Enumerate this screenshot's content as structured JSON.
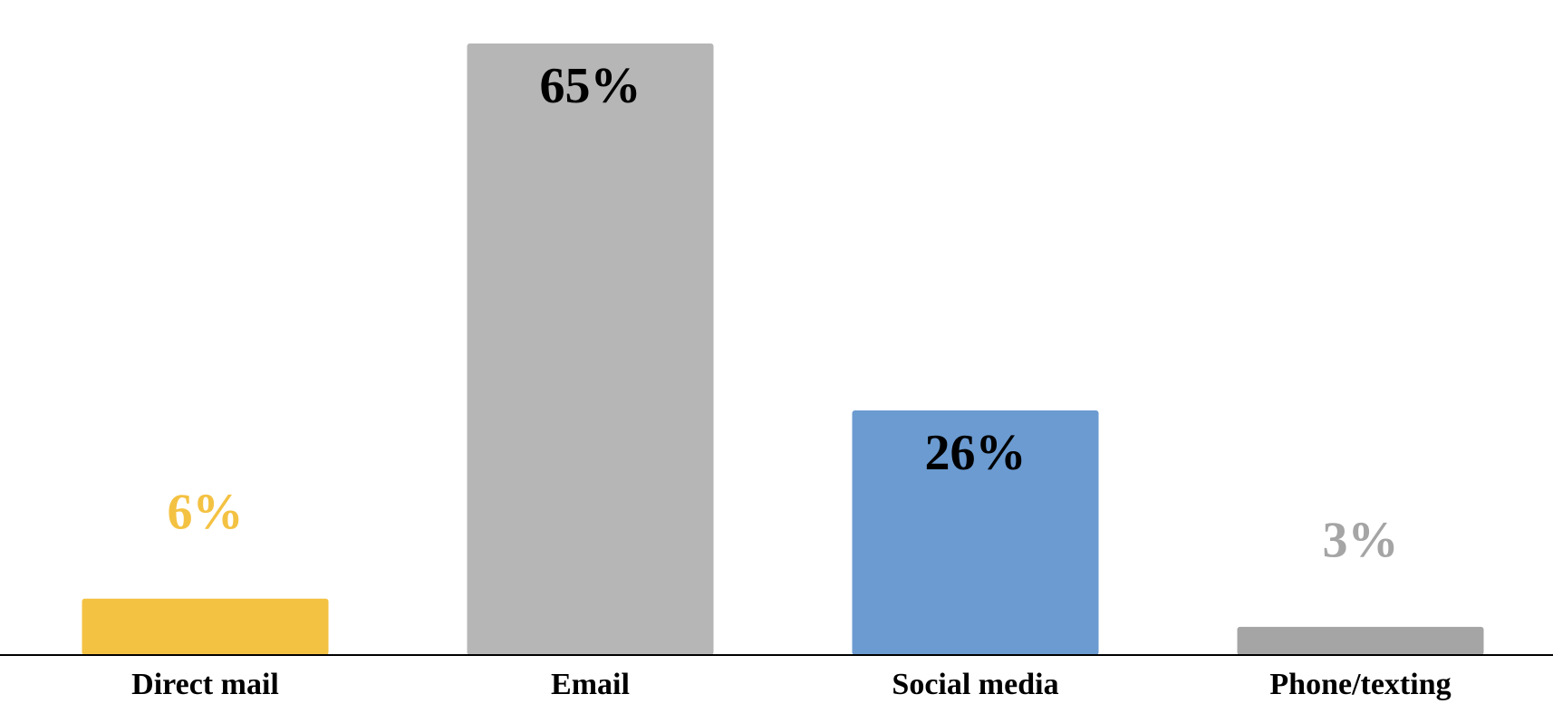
{
  "chart_data": {
    "type": "bar",
    "categories": [
      "Direct mail",
      "Email",
      "Social media",
      "Phone/texting"
    ],
    "values": [
      6,
      65,
      26,
      3
    ],
    "value_labels": [
      "6%",
      "65%",
      "26%",
      "3%"
    ],
    "colors": [
      "#f4c242",
      "#b6b6b6",
      "#6b9bd1",
      "#a5a5a5"
    ],
    "label_colors": [
      "#f4c242",
      "#000000",
      "#000000",
      "#a5a5a5"
    ]
  }
}
